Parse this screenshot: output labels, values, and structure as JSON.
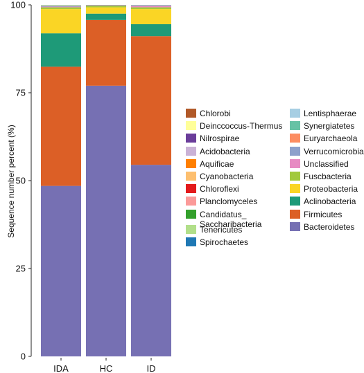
{
  "chart_data": {
    "type": "bar",
    "stacked": true,
    "categories": [
      "IDA",
      "HC",
      "ID"
    ],
    "ylabel": "Sequence number percent (%)",
    "ylim": [
      0,
      100
    ],
    "yticks": [
      "0",
      "25",
      "50",
      "75",
      "100"
    ],
    "series": [
      {
        "name": "Bacteroidetes",
        "color": "#7670b3",
        "values": [
          48.5,
          77.0,
          54.5
        ]
      },
      {
        "name": "Firmicutes",
        "color": "#dc5f26",
        "values": [
          33.9,
          18.7,
          36.6
        ]
      },
      {
        "name": "Aclinobacteria",
        "color": "#1e9a78",
        "values": [
          9.5,
          1.8,
          3.4
        ]
      },
      {
        "name": "Proteobacteria",
        "color": "#fad525",
        "values": [
          6.9,
          1.8,
          4.3
        ]
      },
      {
        "name": "Fuscbacteria",
        "color": "#a2c93c",
        "values": [
          0.5,
          0.4,
          0.5
        ]
      },
      {
        "name": "Unclassified",
        "color": "#e78ac3",
        "values": [
          0.2,
          0.1,
          0.4
        ]
      },
      {
        "name": "Verrucomicrobia",
        "color": "#8da0cb",
        "values": [
          0.2,
          0.1,
          0.1
        ]
      },
      {
        "name": "Euryarchaeola",
        "color": "#fc8d62",
        "values": [
          0.1,
          0.05,
          0.1
        ]
      },
      {
        "name": "Synergiatetes",
        "color": "#66c2a5",
        "values": [
          0.05,
          0.05,
          0.05
        ]
      },
      {
        "name": "Lentisphaerae",
        "color": "#a6cee3",
        "values": [
          0.05,
          0.0,
          0.05
        ]
      },
      {
        "name": "Spirochaetes",
        "color": "#1f78b4",
        "values": [
          0.0,
          0.0,
          0.0
        ]
      },
      {
        "name": "Tenericutes",
        "color": "#b2df8a",
        "values": [
          0.05,
          0.0,
          0.0
        ]
      },
      {
        "name": "Candidatus_\nSaccharibacteria",
        "color": "#33a02c",
        "values": [
          0.0,
          0.0,
          0.0
        ]
      },
      {
        "name": "Planclomyceles",
        "color": "#fb9a99",
        "values": [
          0.0,
          0.0,
          0.0
        ]
      },
      {
        "name": "Chloroflexi",
        "color": "#e31a1c",
        "values": [
          0.0,
          0.0,
          0.0
        ]
      },
      {
        "name": "Cyanobacteria",
        "color": "#fdbf6f",
        "values": [
          0.0,
          0.0,
          0.0
        ]
      },
      {
        "name": "Aquificae",
        "color": "#ff7f00",
        "values": [
          0.0,
          0.0,
          0.0
        ]
      },
      {
        "name": "Acidobacteria",
        "color": "#cab2d6",
        "values": [
          0.0,
          0.0,
          0.0
        ]
      },
      {
        "name": "Nilrospirae",
        "color": "#6a3d9a",
        "values": [
          0.0,
          0.0,
          0.0
        ]
      },
      {
        "name": "Deinccoccus-Thermus",
        "color": "#ffff99",
        "values": [
          0.0,
          0.0,
          0.0
        ]
      },
      {
        "name": "Chlorobi",
        "color": "#b15928",
        "values": [
          0.0,
          0.0,
          0.0
        ]
      }
    ],
    "legend_columns": [
      [
        "Chlorobi",
        "Deinccoccus-Thermus",
        "Nilrospirae",
        "Acidobacteria",
        "Aquificae",
        "Cyanobacteria",
        "Chloroflexi",
        "Planclomyceles",
        "Candidatus_\nSaccharibacteria",
        "Tenericutes",
        "Spirochaetes"
      ],
      [
        "Lentisphaerae",
        "Synergiatetes",
        "Euryarchaeola",
        "Verrucomicrobia",
        "Unclassified",
        "Fuscbacteria",
        "Proteobacteria",
        "Aclinobacteria",
        "Firmicutes",
        "Bacteroidetes"
      ]
    ],
    "legend_position": "right",
    "grid": false
  }
}
